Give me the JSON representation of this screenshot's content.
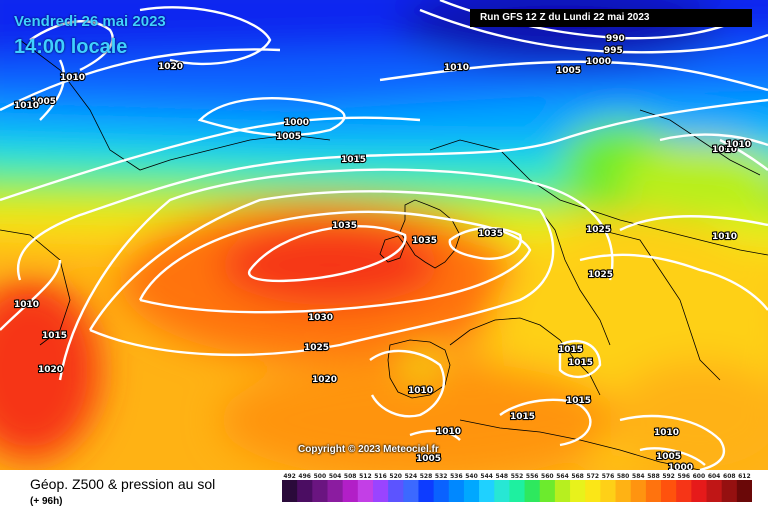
{
  "header": {
    "date_label": "Vendredi 26 mai 2023",
    "time_label": "14:00 locale",
    "run_label": "Run GFS 12 Z du Lundi 22 mai 2023"
  },
  "copyright": "Copyright © 2023 Meteociel.fr",
  "footer": {
    "title": "Géop. Z500 & pression au sol",
    "subtitle": "(+ 96h)"
  },
  "legend": {
    "values": [
      "492",
      "496",
      "500",
      "504",
      "508",
      "512",
      "516",
      "520",
      "524",
      "528",
      "532",
      "536",
      "540",
      "544",
      "548",
      "552",
      "556",
      "560",
      "564",
      "568",
      "572",
      "576",
      "580",
      "584",
      "588",
      "592",
      "596",
      "600",
      "604",
      "608",
      "612"
    ],
    "colors": [
      "#2a0a3a",
      "#4b0d62",
      "#6a1580",
      "#8b1ca0",
      "#b21fc7",
      "#c33fe6",
      "#9a44ff",
      "#5c54ff",
      "#3c69ff",
      "#0d3cff",
      "#0a62ff",
      "#0088ff",
      "#00a8ff",
      "#1fd1ff",
      "#27e7d4",
      "#1ef0a0",
      "#2ee85e",
      "#6ceb2d",
      "#b7ef1f",
      "#e8f21b",
      "#fbe617",
      "#fed017",
      "#ffb214",
      "#ff9410",
      "#ff730e",
      "#ff520d",
      "#f63517",
      "#e61a1a",
      "#c01616",
      "#951010",
      "#6a0808"
    ]
  },
  "isobar_labels": [
    {
      "text": "1020"
    },
    {
      "text": "1010"
    },
    {
      "text": "1005"
    },
    {
      "text": "1010"
    },
    {
      "text": "1010"
    },
    {
      "text": "1005"
    },
    {
      "text": "990"
    },
    {
      "text": "995"
    },
    {
      "text": "1000"
    },
    {
      "text": "1000"
    },
    {
      "text": "1005"
    },
    {
      "text": "1015"
    },
    {
      "text": "1010"
    },
    {
      "text": "1010"
    },
    {
      "text": "1035"
    },
    {
      "text": "1035"
    },
    {
      "text": "1035"
    },
    {
      "text": "1025"
    },
    {
      "text": "1010"
    },
    {
      "text": "1025"
    },
    {
      "text": "1010"
    },
    {
      "text": "1015"
    },
    {
      "text": "1030"
    },
    {
      "text": "1025"
    },
    {
      "text": "1020"
    },
    {
      "text": "1020"
    },
    {
      "text": "1010"
    },
    {
      "text": "1015"
    },
    {
      "text": "1015"
    },
    {
      "text": "1015"
    },
    {
      "text": "1015"
    },
    {
      "text": "1010"
    },
    {
      "text": "1005"
    },
    {
      "text": "1010"
    },
    {
      "text": "1005"
    },
    {
      "text": "1000"
    }
  ]
}
